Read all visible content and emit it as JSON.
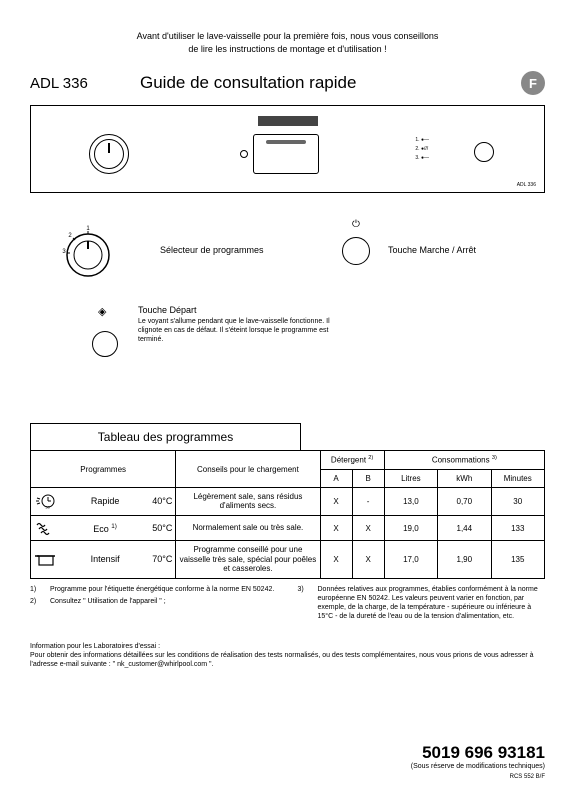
{
  "warning": {
    "line1": "Avant d'utiliser le lave-vaisselle pour la première fois, nous vous conseillons",
    "line2": "de lire les instructions de montage et d'utilisation !"
  },
  "header": {
    "model": "ADL 336",
    "title": "Guide de consultation rapide",
    "lang": "F"
  },
  "panel": {
    "indicators": [
      "1. ●—",
      "2. ●///",
      "3. ●—"
    ],
    "small_model": "ADL 336"
  },
  "controls": {
    "selector_label": "Sélecteur de programmes",
    "power_label": "Touche Marche / Arrêt",
    "start_title": "Touche Départ",
    "start_desc": "Le voyant s'allume pendant que le lave-vaisselle fonctionne. Il clignote en cas de défaut. Il s'éteint lorsque le programme est terminé."
  },
  "table": {
    "title": "Tableau des programmes",
    "headers": {
      "programs": "Programmes",
      "loading": "Conseils pour le chargement",
      "detergent": "Détergent",
      "detergent_sup": "2)",
      "consumption": "Consommations",
      "consumption_sup": "3)",
      "a": "A",
      "b": "B",
      "litres": "Litres",
      "kwh": "kWh",
      "minutes": "Minutes"
    },
    "rows": [
      {
        "icon": "clock",
        "name": "Rapide",
        "sup": "",
        "temp": "40°C",
        "loading": "Légèrement sale, sans résidus d'aliments secs.",
        "a": "X",
        "b": "-",
        "litres": "13,0",
        "kwh": "0,70",
        "min": "30"
      },
      {
        "icon": "wave",
        "name": "Eco",
        "sup": "1)",
        "temp": "50°C",
        "loading": "Normalement sale ou très sale.",
        "a": "X",
        "b": "X",
        "litres": "19,0",
        "kwh": "1,44",
        "min": "133"
      },
      {
        "icon": "pot",
        "name": "Intensif",
        "sup": "",
        "temp": "70°C",
        "loading": "Programme conseillé pour une vaisselle très sale, spécial pour poêles et casseroles.",
        "a": "X",
        "b": "X",
        "litres": "17,0",
        "kwh": "1,90",
        "min": "135"
      }
    ]
  },
  "footnotes": {
    "left": [
      {
        "num": "1)",
        "text": "Programme pour l'étiquette énergétique conforme à la norme EN 50242."
      },
      {
        "num": "2)",
        "text": "Consultez \" Utilisation de l'appareil \" ;"
      }
    ],
    "right": [
      {
        "num": "3)",
        "text": "Données relatives aux programmes, établies conformément à la norme européenne EN 50242. Les valeurs peuvent varier en fonction, par exemple, de la charge, de la température - supérieure ou inférieure à 15°C - de la dureté de l'eau ou de la tension d'alimentation, etc."
      }
    ]
  },
  "lab_info": {
    "line1": "Information pour les Laboratoires d'essai :",
    "line2": "Pour obtenir des informations détaillées sur les conditions de réalisation des tests normalisés, ou des tests complémentaires, nous vous prions de vous adresser à l'adresse e-mail suivante : \" nk_customer@whirlpool.com \"."
  },
  "footer": {
    "doc_number": "5019 696 93181",
    "reserve": "(Sous réserve de modifications techniques)",
    "tiny": "RCS 552 B/F"
  },
  "style": {
    "bg": "#ffffff",
    "fg": "#000000",
    "badge_bg": "#888888"
  }
}
